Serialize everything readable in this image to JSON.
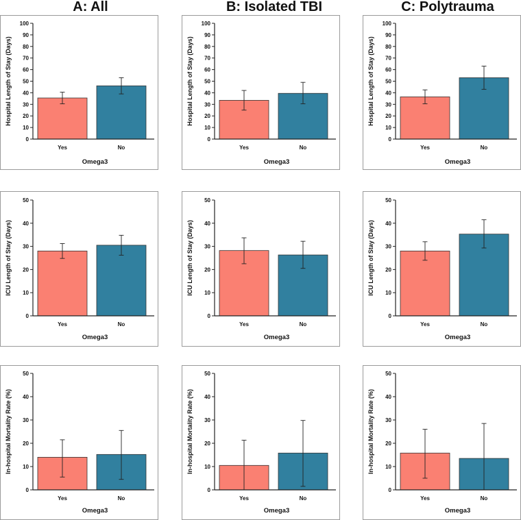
{
  "column_titles": [
    "A: All",
    "B: Isolated TBI",
    "C: Polytrauma"
  ],
  "colors": {
    "yes": "#fa8072",
    "no": "#31809f",
    "axis": "#222222",
    "frame": "#9a9a9a"
  },
  "chart_data": [
    {
      "type": "bar",
      "group": "A: All",
      "ylabel": "Hospital Length of Stay (Days)",
      "xlabel": "Omega3",
      "categories": [
        "Yes",
        "No"
      ],
      "values": [
        35.5,
        46
      ],
      "error_low": [
        30.5,
        39
      ],
      "error_high": [
        40.5,
        53
      ],
      "ylim": [
        0,
        100
      ],
      "yticks": [
        0,
        10,
        20,
        30,
        40,
        50,
        60,
        70,
        80,
        90,
        100
      ]
    },
    {
      "type": "bar",
      "group": "B: Isolated TBI",
      "ylabel": "Hospital Length of Stay (Days)",
      "xlabel": "Omega3",
      "categories": [
        "Yes",
        "No"
      ],
      "values": [
        33.5,
        39.5
      ],
      "error_low": [
        25,
        30.5
      ],
      "error_high": [
        42,
        49
      ],
      "ylim": [
        0,
        100
      ],
      "yticks": [
        0,
        10,
        20,
        30,
        40,
        50,
        60,
        70,
        80,
        90,
        100
      ]
    },
    {
      "type": "bar",
      "group": "C: Polytrauma",
      "ylabel": "Hospital Length of Stay (Days)",
      "xlabel": "Omega3",
      "categories": [
        "Yes",
        "No"
      ],
      "values": [
        36.5,
        53
      ],
      "error_low": [
        30.5,
        43
      ],
      "error_high": [
        42.5,
        63
      ],
      "ylim": [
        0,
        100
      ],
      "yticks": [
        0,
        10,
        20,
        30,
        40,
        50,
        60,
        70,
        80,
        90,
        100
      ]
    },
    {
      "type": "bar",
      "group": "A: All",
      "ylabel": "ICU Length of Stay (Days)",
      "xlabel": "Omega3",
      "categories": [
        "Yes",
        "No"
      ],
      "values": [
        28,
        30.5
      ],
      "error_low": [
        24.8,
        26.2
      ],
      "error_high": [
        31.2,
        34.8
      ],
      "ylim": [
        0,
        50
      ],
      "yticks": [
        0,
        10,
        20,
        30,
        40,
        50
      ]
    },
    {
      "type": "bar",
      "group": "B: Isolated TBI",
      "ylabel": "ICU Length of Stay (Days)",
      "xlabel": "Omega3",
      "categories": [
        "Yes",
        "No"
      ],
      "values": [
        28.2,
        26.3
      ],
      "error_low": [
        22.5,
        20.5
      ],
      "error_high": [
        33.7,
        32.2
      ],
      "ylim": [
        0,
        50
      ],
      "yticks": [
        0,
        10,
        20,
        30,
        40,
        50
      ]
    },
    {
      "type": "bar",
      "group": "C: Polytrauma",
      "ylabel": "ICU Length of Stay (Days)",
      "xlabel": "Omega3",
      "categories": [
        "Yes",
        "No"
      ],
      "values": [
        28,
        35.3
      ],
      "error_low": [
        24,
        29.3
      ],
      "error_high": [
        32,
        41.5
      ],
      "ylim": [
        0,
        50
      ],
      "yticks": [
        0,
        10,
        20,
        30,
        40,
        50
      ]
    },
    {
      "type": "bar",
      "group": "A: All",
      "ylabel": "In-hospital Mortality Rate (%)",
      "xlabel": "Omega3",
      "categories": [
        "Yes",
        "No"
      ],
      "values": [
        14,
        15.2
      ],
      "error_low": [
        5.5,
        4.5
      ],
      "error_high": [
        21.5,
        25.5
      ],
      "ylim": [
        0,
        50
      ],
      "yticks": [
        0,
        10,
        20,
        30,
        40,
        50
      ]
    },
    {
      "type": "bar",
      "group": "B: Isolated TBI",
      "ylabel": "In-hospital Mortality Rate (%)",
      "xlabel": "Omega3",
      "categories": [
        "Yes",
        "No"
      ],
      "values": [
        10.5,
        15.8
      ],
      "error_low": [
        0,
        1.5
      ],
      "error_high": [
        21.3,
        29.8
      ],
      "ylim": [
        0,
        50
      ],
      "yticks": [
        0,
        10,
        20,
        30,
        40,
        50
      ]
    },
    {
      "type": "bar",
      "group": "C: Polytrauma",
      "ylabel": "In-hospital Mortality Rate (%)",
      "xlabel": "Omega3",
      "categories": [
        "Yes",
        "No"
      ],
      "values": [
        15.8,
        13.5
      ],
      "error_low": [
        5,
        0
      ],
      "error_high": [
        26,
        28.5
      ],
      "ylim": [
        0,
        50
      ],
      "yticks": [
        0,
        10,
        20,
        30,
        40,
        50
      ]
    }
  ]
}
